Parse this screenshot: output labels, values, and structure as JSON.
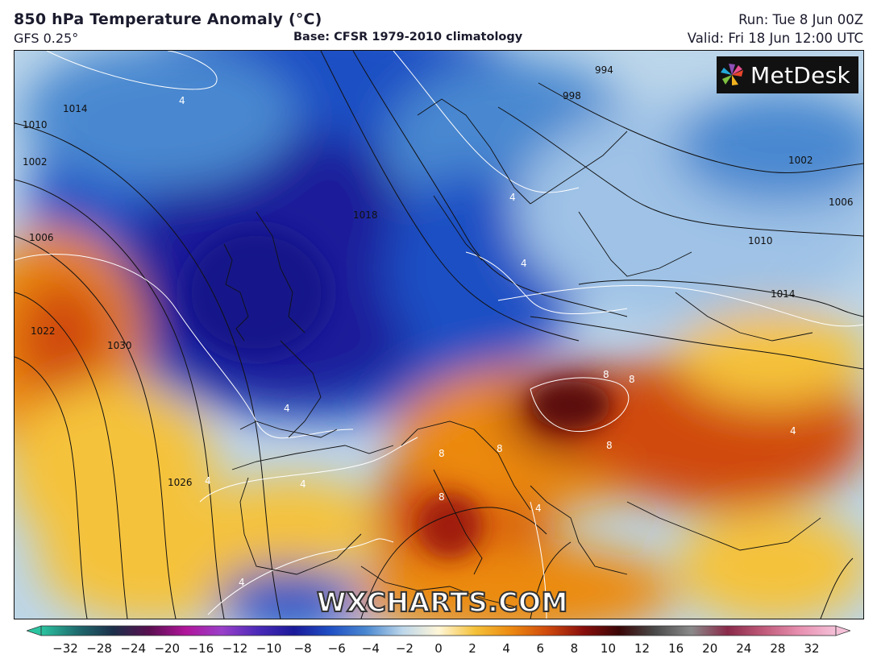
{
  "header": {
    "title": "850 hPa Temperature Anomaly (°C)",
    "model": "GFS 0.25°",
    "base": "Base: CFSR 1979-2010 climatology",
    "run": "Run: Tue 8 Jun 00Z",
    "valid": "Valid: Fri 18 Jun 12:00 UTC"
  },
  "logo": {
    "text": "MetDesk",
    "icon": "metdesk-pinwheel-icon"
  },
  "watermark": "WXCHARTS.COM",
  "colorbar": {
    "ticks": [
      "−32",
      "−28",
      "−24",
      "−20",
      "−16",
      "−12",
      "−10",
      "−8",
      "−6",
      "−4",
      "−2",
      "0",
      "2",
      "4",
      "6",
      "8",
      "10",
      "12",
      "16",
      "20",
      "24",
      "28",
      "32"
    ],
    "colors": [
      "#2bc4a0",
      "#1f6b6e",
      "#1c2f4a",
      "#5a0f50",
      "#b0149a",
      "#9a3fc9",
      "#4b2ab8",
      "#1a1a9a",
      "#1f4fc4",
      "#4a88d0",
      "#bcd6ea",
      "#fff6d8",
      "#f5c23a",
      "#ec8a10",
      "#d04a0c",
      "#8a0f0c",
      "#3a0606",
      "#4a4a4a",
      "#8a8a8a",
      "#8a2a4a",
      "#c05a7a",
      "#e890b0",
      "#f4c0d8"
    ]
  },
  "isobar_labels": [
    "994",
    "998",
    "1002",
    "1006",
    "1010",
    "1014",
    "1018",
    "1022",
    "1026",
    "1030"
  ],
  "anomaly_labels": [
    "4",
    "8"
  ]
}
